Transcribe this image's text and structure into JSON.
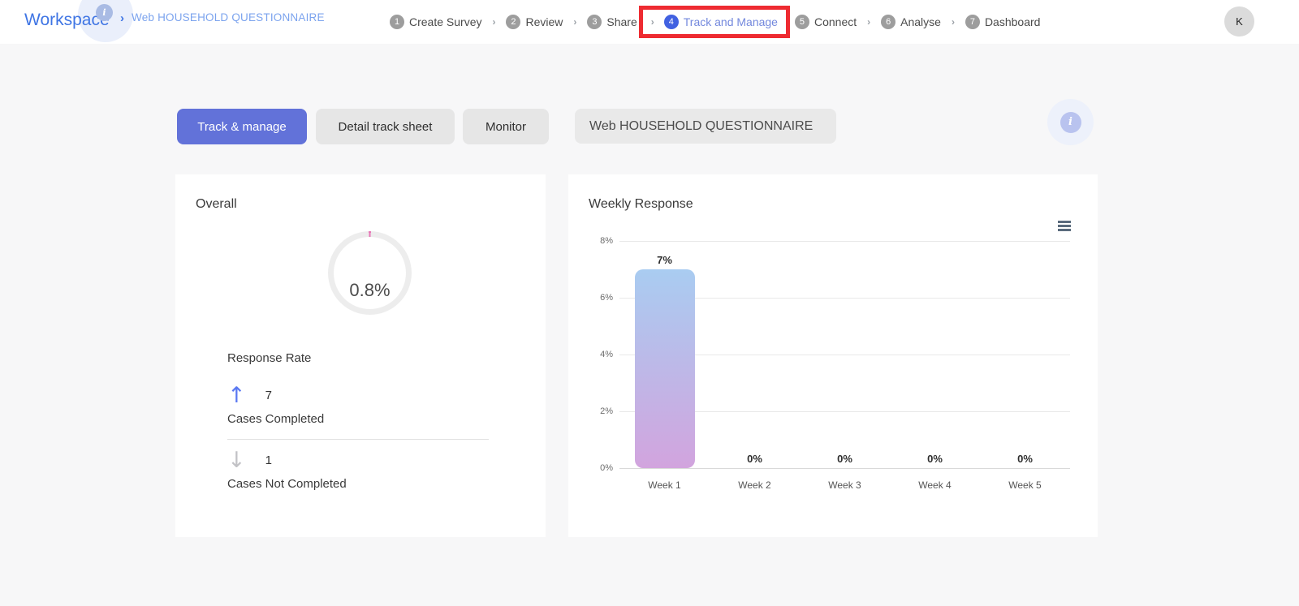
{
  "header": {
    "workspace_label": "Workspace",
    "breadcrumb_separator": "›",
    "breadcrumb_survey": "Web HOUSEHOLD QUESTIONNAIRE",
    "step_separator": "›",
    "steps": [
      {
        "number": "1",
        "label": "Create Survey",
        "active": false,
        "highlighted": false
      },
      {
        "number": "2",
        "label": "Review",
        "active": false,
        "highlighted": false
      },
      {
        "number": "3",
        "label": "Share",
        "active": false,
        "highlighted": false
      },
      {
        "number": "4",
        "label": "Track and Manage",
        "active": true,
        "highlighted": true
      },
      {
        "number": "5",
        "label": "Connect",
        "active": false,
        "highlighted": false
      },
      {
        "number": "6",
        "label": "Analyse",
        "active": false,
        "highlighted": false
      },
      {
        "number": "7",
        "label": "Dashboard",
        "active": false,
        "highlighted": false
      }
    ],
    "info_icon_glyph": "i",
    "avatar_initial": "K"
  },
  "toolbar": {
    "tabs": [
      {
        "label": "Track & manage",
        "active": true
      },
      {
        "label": "Detail track sheet",
        "active": false
      },
      {
        "label": "Monitor",
        "active": false
      }
    ],
    "survey_name_field": "Web HOUSEHOLD QUESTIONNAIRE",
    "info_icon_glyph": "i"
  },
  "overall_card": {
    "title": "Overall",
    "rate_value": "0.8%",
    "rate_percent": 0.8,
    "rate_label": "Response Rate",
    "completed": {
      "value": "7",
      "label": "Cases Completed"
    },
    "not_completed": {
      "value": "1",
      "label": "Cases Not Completed"
    }
  },
  "weekly_card": {
    "title": "Weekly Response"
  },
  "chart_data": {
    "type": "bar",
    "categories": [
      "Week 1",
      "Week 2",
      "Week 3",
      "Week 4",
      "Week 5"
    ],
    "values": [
      7,
      0,
      0,
      0,
      0
    ],
    "data_labels": [
      "7%",
      "0%",
      "0%",
      "0%",
      "0%"
    ],
    "title": "Weekly Response",
    "xlabel": "",
    "ylabel": "",
    "ylim": [
      0,
      8
    ],
    "ytick_values": [
      0,
      2,
      4,
      6,
      8
    ],
    "ytick_labels": [
      "0%",
      "2%",
      "4%",
      "6%",
      "8%"
    ],
    "grid": true,
    "legend": false,
    "bar_gradient_top": "#a9ccf1",
    "bar_gradient_bottom": "#d2a4de"
  },
  "colors": {
    "accent_blue": "#6272d9",
    "step_active_blue": "#4161e1",
    "annotation_red": "#ee2b31",
    "donut_ring": "#ededed",
    "donut_segment_pink": "#e878b8",
    "arrow_up_blue": "#5a78f2",
    "arrow_down_gray": "#c2c2c6"
  }
}
